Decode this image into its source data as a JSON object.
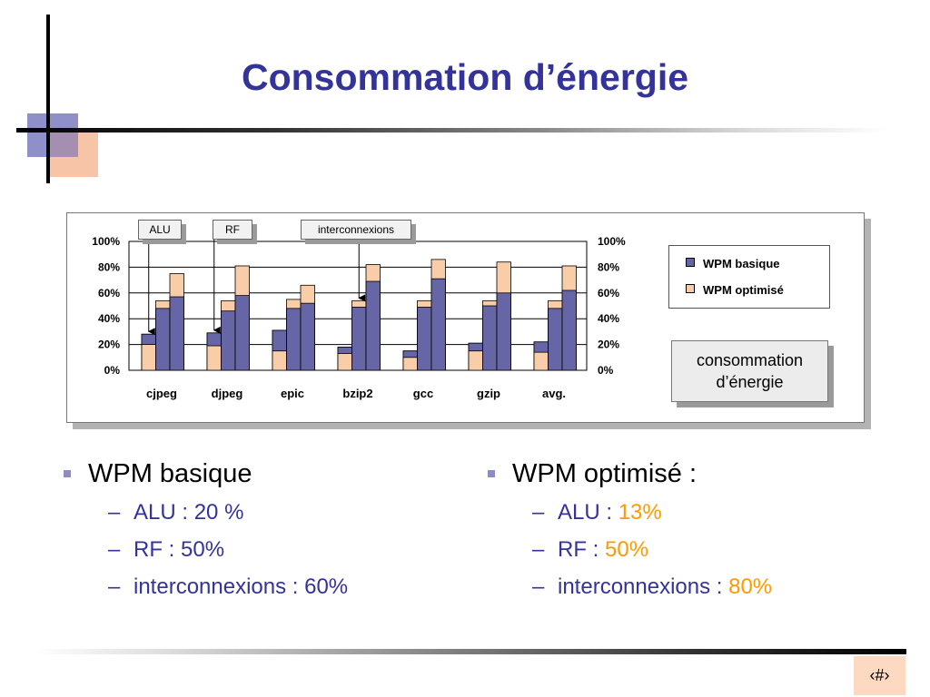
{
  "slide": {
    "title": "Consommation d’énergie",
    "page_number": "‹#›"
  },
  "chart": {
    "callouts": {
      "alu": "ALU",
      "rf": "RF",
      "interconnexions": "interconnexions"
    },
    "energy_box": {
      "line1": "consommation",
      "line2": "d’énergie"
    }
  },
  "chart_data": {
    "type": "bar",
    "title": "",
    "xlabel": "",
    "ylabel": "",
    "ylim": [
      0,
      100
    ],
    "y_ticks": [
      "0%",
      "20%",
      "40%",
      "60%",
      "80%",
      "100%"
    ],
    "categories": [
      "cjpeg",
      "djpeg",
      "epic",
      "bzip2",
      "gcc",
      "gzip",
      "avg."
    ],
    "sub_bar_labels": [
      "ALU",
      "RF",
      "interconnexions"
    ],
    "series": [
      {
        "name": "WPM basique",
        "color": "#6666a6",
        "values": [
          [
            28,
            48,
            57
          ],
          [
            29,
            46,
            58
          ],
          [
            31,
            48,
            52
          ],
          [
            18,
            49,
            69
          ],
          [
            15,
            49,
            71
          ],
          [
            21,
            50,
            60
          ],
          [
            22,
            48,
            62
          ]
        ]
      },
      {
        "name": "WPM optimisé",
        "color": "#f9cda8",
        "values": [
          [
            20,
            54,
            75
          ],
          [
            19,
            54,
            81
          ],
          [
            15,
            55,
            66
          ],
          [
            13,
            54,
            82
          ],
          [
            10,
            54,
            86
          ],
          [
            15,
            54,
            84
          ],
          [
            14,
            54,
            81
          ]
        ]
      }
    ],
    "legend_position": "right",
    "grid": true
  },
  "bullets": {
    "left": {
      "heading": "WPM basique",
      "items": [
        {
          "label": "ALU : ",
          "value": "20 %"
        },
        {
          "label": "RF : ",
          "value": "50%"
        },
        {
          "label": "interconnexions : ",
          "value": "60%"
        }
      ]
    },
    "right": {
      "heading": "WPM optimisé :",
      "items": [
        {
          "label": "ALU : ",
          "value": "13%"
        },
        {
          "label": "RF : ",
          "value": "50%"
        },
        {
          "label": "interconnexions : ",
          "value": "80%"
        }
      ]
    },
    "dash": "–"
  },
  "colors": {
    "title": "#333399",
    "sub_text": "#333399",
    "highlight": "#ff9900",
    "bullet": "#8c8cc2"
  }
}
